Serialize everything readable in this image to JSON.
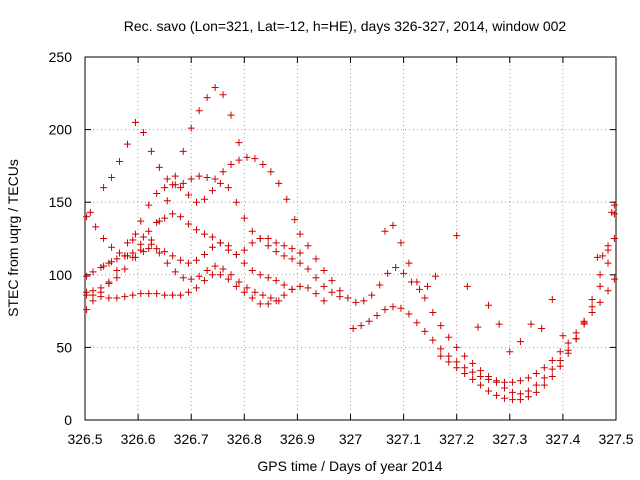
{
  "chart_data": {
    "type": "scatter",
    "title": "Rec. savo (Lon=321, Lat=-12, h=HE), days 326-327, 2014, window 002",
    "xlabel": "GPS time / Days of year 2014",
    "ylabel": "STEC from uqrg / TECUs",
    "xlim": [
      326.5,
      327.5
    ],
    "ylim": [
      0,
      250
    ],
    "xticks": [
      "326.5",
      "326.6",
      "326.7",
      "326.8",
      "326.9",
      "327",
      "327.1",
      "327.2",
      "327.3",
      "327.4",
      "327.5"
    ],
    "yticks": [
      "0",
      "50",
      "100",
      "150",
      "200",
      "250"
    ],
    "grid": true,
    "marker": "+",
    "color": "#cc0000",
    "series": [
      {
        "x": [
          326.503,
          326.51,
          326.52,
          326.535,
          326.55,
          326.565,
          326.58,
          326.595,
          326.61,
          326.625,
          326.64,
          326.655,
          326.67,
          326.685,
          326.7,
          326.715,
          326.73,
          326.745,
          326.76,
          326.775,
          326.79
        ],
        "y": [
          140,
          143,
          133,
          125,
          119,
          115,
          113,
          112,
          116,
          124,
          137,
          151,
          168,
          185,
          201,
          213,
          222,
          229,
          224,
          210,
          191
        ]
      },
      {
        "x": [
          326.535,
          326.55,
          326.565,
          326.58,
          326.595,
          326.61,
          326.625,
          326.64,
          326.655,
          326.67,
          326.685,
          326.7,
          326.715,
          326.73,
          326.745,
          326.76,
          326.775,
          326.79,
          326.805,
          326.82,
          326.835,
          326.85,
          326.865,
          326.88,
          326.895
        ],
        "y": [
          160,
          167,
          178,
          190,
          205,
          198,
          185,
          174,
          166,
          162,
          163,
          166,
          168,
          167,
          166,
          171,
          176,
          179,
          181,
          180,
          176,
          171,
          163,
          152,
          138
        ]
      },
      {
        "x": [
          326.503,
          326.515,
          326.53,
          326.545,
          326.56,
          326.575,
          326.59,
          326.605,
          326.62,
          326.635,
          326.65,
          326.665,
          326.68,
          326.695,
          326.71,
          326.725,
          326.74,
          326.755,
          326.77,
          326.785,
          326.8,
          326.815,
          326.83,
          326.845,
          326.86,
          326.875,
          326.89,
          326.905,
          326.92,
          326.935,
          326.95,
          326.965,
          326.98
        ],
        "y": [
          76,
          82,
          88,
          95,
          103,
          113,
          124,
          137,
          148,
          156,
          160,
          162,
          160,
          155,
          150,
          152,
          158,
          163,
          160,
          150,
          139,
          130,
          125,
          120,
          116,
          113,
          111,
          108,
          104,
          98,
          92,
          88,
          85
        ]
      },
      {
        "x": [
          326.503,
          326.515,
          326.53,
          326.545,
          326.56,
          326.575,
          326.59,
          326.605,
          326.62,
          326.635,
          326.65,
          326.665,
          326.68,
          326.695,
          326.71,
          326.725,
          326.74,
          326.755,
          326.77,
          326.785,
          326.8,
          326.815,
          326.83,
          326.845,
          326.86,
          326.875,
          326.89,
          326.905
        ],
        "y": [
          88,
          89,
          91,
          94,
          98,
          104,
          112,
          121,
          130,
          136,
          139,
          142,
          140,
          135,
          131,
          128,
          126,
          122,
          117,
          114,
          117,
          122,
          125,
          125,
          122,
          120,
          118,
          115
        ]
      },
      {
        "x": [
          326.503,
          326.515,
          326.53,
          326.545,
          326.56,
          326.575,
          326.59,
          326.605,
          326.62,
          326.635,
          326.65,
          326.665,
          326.68,
          326.695,
          326.71,
          326.725,
          326.74,
          326.755,
          326.77,
          326.785,
          326.8,
          326.815,
          326.83,
          326.845,
          326.86,
          326.875,
          326.89
        ],
        "y": [
          99,
          102,
          105,
          108,
          111,
          113,
          115,
          117,
          118,
          118,
          116,
          113,
          110,
          108,
          110,
          114,
          119,
          122,
          120,
          114,
          108,
          103,
          100,
          98,
          96,
          93,
          90
        ]
      },
      {
        "x": [
          326.503,
          326.515,
          326.53,
          326.545,
          326.56,
          326.575,
          326.59,
          326.605,
          326.62,
          326.635,
          326.65,
          326.665,
          326.68,
          326.695,
          326.71,
          326.725,
          326.74,
          326.755,
          326.77,
          326.785,
          326.8,
          326.815,
          326.83,
          326.845,
          326.86,
          326.875,
          326.89,
          326.905,
          326.92,
          326.935,
          326.95
        ],
        "y": [
          86,
          86,
          85,
          84,
          84,
          85,
          86,
          87,
          87,
          87,
          86,
          86,
          86,
          88,
          91,
          96,
          100,
          100,
          97,
          92,
          88,
          84,
          80,
          80,
          82,
          86,
          90,
          92,
          91,
          87,
          82
        ]
      },
      {
        "x": [
          326.535,
          326.55,
          326.565,
          326.58,
          326.595,
          326.61,
          326.625,
          326.64,
          326.655,
          326.67,
          326.685,
          326.7,
          326.715,
          326.73,
          326.745,
          326.76,
          326.775,
          326.79,
          326.805,
          326.82,
          326.835,
          326.85,
          326.865
        ],
        "y": [
          106,
          109,
          115,
          122,
          128,
          126,
          121,
          115,
          108,
          102,
          98,
          97,
          99,
          103,
          106,
          104,
          100,
          95,
          91,
          88,
          86,
          84,
          82
        ]
      },
      {
        "x": [
          326.905,
          326.92,
          326.935,
          326.95,
          326.965,
          326.98,
          326.995,
          327.01,
          327.025,
          327.04,
          327.055,
          327.07,
          327.085,
          327.1,
          327.115,
          327.13,
          327.145,
          327.16
        ],
        "y": [
          128,
          120,
          111,
          103,
          96,
          89,
          84,
          81,
          82,
          86,
          93,
          101,
          105,
          101,
          95,
          90,
          92,
          99
        ]
      },
      {
        "x": [
          327.005,
          327.02,
          327.035,
          327.05,
          327.065,
          327.08,
          327.095,
          327.11,
          327.125,
          327.14,
          327.155,
          327.17,
          327.185,
          327.2,
          327.215,
          327.23,
          327.245,
          327.26,
          327.275,
          327.29,
          327.305,
          327.32,
          327.335,
          327.35,
          327.365,
          327.38,
          327.395,
          327.41,
          327.425,
          327.44,
          327.455,
          327.47,
          327.485,
          327.497
        ],
        "y": [
          63,
          65,
          68,
          72,
          76,
          78,
          77,
          73,
          67,
          61,
          55,
          49,
          44,
          40,
          36,
          33,
          30,
          28,
          27,
          26,
          26,
          27,
          29,
          32,
          36,
          41,
          47,
          53,
          60,
          67,
          74,
          81,
          89,
          97
        ]
      },
      {
        "x": [
          327.065,
          327.08,
          327.095,
          327.11,
          327.125,
          327.14,
          327.155,
          327.17,
          327.185,
          327.2,
          327.215,
          327.23,
          327.245,
          327.26,
          327.275,
          327.29,
          327.305,
          327.32,
          327.335,
          327.35,
          327.365,
          327.38,
          327.395,
          327.41,
          327.425,
          327.44,
          327.455,
          327.47,
          327.485,
          327.497
        ],
        "y": [
          130,
          134,
          122,
          108,
          95,
          84,
          74,
          65,
          57,
          50,
          44,
          39,
          34,
          30,
          26,
          22,
          19,
          18,
          20,
          24,
          29,
          35,
          41,
          48,
          56,
          66,
          78,
          92,
          108,
          125
        ]
      },
      {
        "x": [
          327.17,
          327.185,
          327.2,
          327.215,
          327.23,
          327.245,
          327.26,
          327.275,
          327.29,
          327.305,
          327.32,
          327.335,
          327.35,
          327.365,
          327.38,
          327.395,
          327.41,
          327.425,
          327.44,
          327.455,
          327.47,
          327.485,
          327.497
        ],
        "y": [
          44,
          40,
          36,
          32,
          28,
          24,
          20,
          17,
          15,
          14,
          14,
          16,
          19,
          24,
          30,
          37,
          46,
          56,
          68,
          83,
          100,
          120,
          142
        ]
      },
      {
        "x": [
          327.2,
          327.22,
          327.24,
          327.26,
          327.28,
          327.3,
          327.32,
          327.34,
          327.36,
          327.38,
          327.4
        ],
        "y": [
          127,
          92,
          64,
          79,
          66,
          47,
          54,
          66,
          63,
          83,
          58
        ]
      },
      {
        "x": [
          327.465,
          327.475,
          327.485,
          327.492,
          327.497
        ],
        "y": [
          112,
          113,
          117,
          143,
          148
        ]
      }
    ]
  }
}
